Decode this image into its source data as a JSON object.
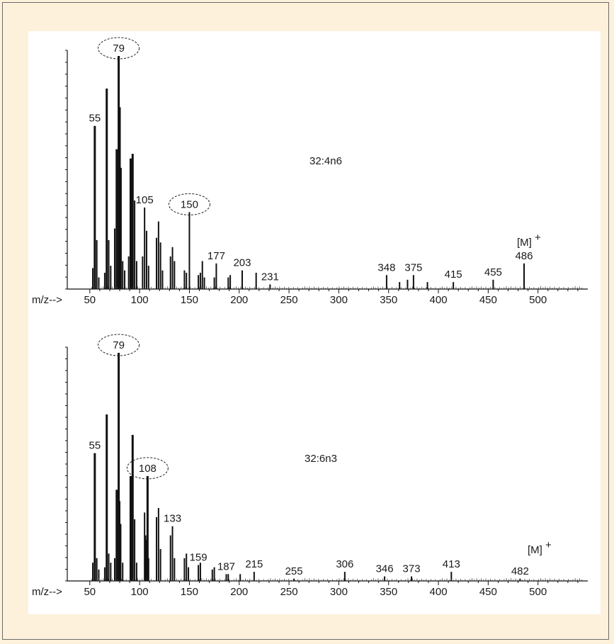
{
  "chart_data": [
    {
      "type": "bar",
      "annotation": "32:4n6",
      "ion_label": "[M]",
      "ion_superscript": "+",
      "axis_prefix": "m/z-->",
      "xlim": [
        48,
        550
      ],
      "ylim": [
        0,
        100
      ],
      "x_ticks": [
        50,
        100,
        150,
        200,
        250,
        300,
        350,
        400,
        450,
        500
      ],
      "circled": [
        79,
        150
      ],
      "peaks": [
        {
          "x": 53,
          "y": 9,
          "label": ""
        },
        {
          "x": 55,
          "y": 70,
          "label": "55"
        },
        {
          "x": 57,
          "y": 21,
          "label": ""
        },
        {
          "x": 59,
          "y": 5,
          "label": ""
        },
        {
          "x": 65,
          "y": 7,
          "label": ""
        },
        {
          "x": 67,
          "y": 86,
          "label": ""
        },
        {
          "x": 69,
          "y": 21,
          "label": ""
        },
        {
          "x": 71,
          "y": 10,
          "label": ""
        },
        {
          "x": 75,
          "y": 26,
          "label": ""
        },
        {
          "x": 77,
          "y": 60,
          "label": ""
        },
        {
          "x": 79,
          "y": 100,
          "label": "79"
        },
        {
          "x": 80,
          "y": 78,
          "label": ""
        },
        {
          "x": 81,
          "y": 52,
          "label": ""
        },
        {
          "x": 83,
          "y": 12,
          "label": ""
        },
        {
          "x": 85,
          "y": 8,
          "label": ""
        },
        {
          "x": 89,
          "y": 14,
          "label": ""
        },
        {
          "x": 91,
          "y": 56,
          "label": ""
        },
        {
          "x": 93,
          "y": 58,
          "label": ""
        },
        {
          "x": 95,
          "y": 38,
          "label": ""
        },
        {
          "x": 97,
          "y": 12,
          "label": ""
        },
        {
          "x": 103,
          "y": 14,
          "label": ""
        },
        {
          "x": 105,
          "y": 35,
          "label": "105"
        },
        {
          "x": 107,
          "y": 25,
          "label": ""
        },
        {
          "x": 109,
          "y": 10,
          "label": ""
        },
        {
          "x": 117,
          "y": 22,
          "label": ""
        },
        {
          "x": 119,
          "y": 29,
          "label": ""
        },
        {
          "x": 121,
          "y": 20,
          "label": ""
        },
        {
          "x": 123,
          "y": 8,
          "label": ""
        },
        {
          "x": 131,
          "y": 14,
          "label": ""
        },
        {
          "x": 133,
          "y": 18,
          "label": ""
        },
        {
          "x": 135,
          "y": 12,
          "label": ""
        },
        {
          "x": 145,
          "y": 8,
          "label": ""
        },
        {
          "x": 147,
          "y": 7,
          "label": ""
        },
        {
          "x": 150,
          "y": 33,
          "label": "150"
        },
        {
          "x": 159,
          "y": 6,
          "label": ""
        },
        {
          "x": 161,
          "y": 7,
          "label": ""
        },
        {
          "x": 163,
          "y": 12,
          "label": ""
        },
        {
          "x": 165,
          "y": 5,
          "label": ""
        },
        {
          "x": 175,
          "y": 5,
          "label": ""
        },
        {
          "x": 177,
          "y": 11,
          "label": "177"
        },
        {
          "x": 189,
          "y": 5,
          "label": ""
        },
        {
          "x": 191,
          "y": 6,
          "label": ""
        },
        {
          "x": 203,
          "y": 8,
          "label": "203"
        },
        {
          "x": 217,
          "y": 7,
          "label": ""
        },
        {
          "x": 231,
          "y": 2,
          "label": "231"
        },
        {
          "x": 348,
          "y": 6,
          "label": "348"
        },
        {
          "x": 361,
          "y": 3,
          "label": ""
        },
        {
          "x": 369,
          "y": 4,
          "label": ""
        },
        {
          "x": 375,
          "y": 6,
          "label": "375"
        },
        {
          "x": 389,
          "y": 3,
          "label": ""
        },
        {
          "x": 415,
          "y": 3,
          "label": "415"
        },
        {
          "x": 455,
          "y": 4,
          "label": "455"
        },
        {
          "x": 486,
          "y": 11,
          "label": "486"
        }
      ]
    },
    {
      "type": "bar",
      "annotation": "32:6n3",
      "ion_label": "[M]",
      "ion_superscript": "+",
      "axis_prefix": "m/z-->",
      "xlim": [
        48,
        550
      ],
      "ylim": [
        0,
        100
      ],
      "x_ticks": [
        50,
        100,
        150,
        200,
        250,
        300,
        350,
        400,
        450,
        500
      ],
      "circled": [
        79,
        108
      ],
      "peaks": [
        {
          "x": 53,
          "y": 8,
          "label": ""
        },
        {
          "x": 55,
          "y": 56,
          "label": "55"
        },
        {
          "x": 57,
          "y": 10,
          "label": ""
        },
        {
          "x": 59,
          "y": 5,
          "label": ""
        },
        {
          "x": 65,
          "y": 6,
          "label": ""
        },
        {
          "x": 67,
          "y": 73,
          "label": ""
        },
        {
          "x": 69,
          "y": 12,
          "label": ""
        },
        {
          "x": 71,
          "y": 8,
          "label": ""
        },
        {
          "x": 75,
          "y": 10,
          "label": ""
        },
        {
          "x": 77,
          "y": 40,
          "label": ""
        },
        {
          "x": 79,
          "y": 100,
          "label": "79"
        },
        {
          "x": 80,
          "y": 35,
          "label": ""
        },
        {
          "x": 81,
          "y": 25,
          "label": ""
        },
        {
          "x": 83,
          "y": 8,
          "label": ""
        },
        {
          "x": 91,
          "y": 46,
          "label": ""
        },
        {
          "x": 93,
          "y": 64,
          "label": ""
        },
        {
          "x": 95,
          "y": 27,
          "label": ""
        },
        {
          "x": 97,
          "y": 8,
          "label": ""
        },
        {
          "x": 105,
          "y": 30,
          "label": ""
        },
        {
          "x": 106,
          "y": 20,
          "label": ""
        },
        {
          "x": 107,
          "y": 18,
          "label": ""
        },
        {
          "x": 108,
          "y": 46,
          "label": "108"
        },
        {
          "x": 109,
          "y": 10,
          "label": ""
        },
        {
          "x": 117,
          "y": 28,
          "label": ""
        },
        {
          "x": 119,
          "y": 32,
          "label": ""
        },
        {
          "x": 121,
          "y": 14,
          "label": ""
        },
        {
          "x": 131,
          "y": 20,
          "label": ""
        },
        {
          "x": 133,
          "y": 24,
          "label": "133"
        },
        {
          "x": 135,
          "y": 10,
          "label": ""
        },
        {
          "x": 145,
          "y": 10,
          "label": ""
        },
        {
          "x": 147,
          "y": 12,
          "label": ""
        },
        {
          "x": 149,
          "y": 6,
          "label": ""
        },
        {
          "x": 159,
          "y": 7,
          "label": "159"
        },
        {
          "x": 161,
          "y": 8,
          "label": ""
        },
        {
          "x": 173,
          "y": 5,
          "label": ""
        },
        {
          "x": 175,
          "y": 6,
          "label": ""
        },
        {
          "x": 187,
          "y": 3,
          "label": "187"
        },
        {
          "x": 189,
          "y": 3,
          "label": ""
        },
        {
          "x": 201,
          "y": 3,
          "label": ""
        },
        {
          "x": 215,
          "y": 4,
          "label": "215"
        },
        {
          "x": 255,
          "y": 1,
          "label": "255"
        },
        {
          "x": 306,
          "y": 4,
          "label": "306"
        },
        {
          "x": 346,
          "y": 2,
          "label": "346"
        },
        {
          "x": 373,
          "y": 2,
          "label": "373"
        },
        {
          "x": 413,
          "y": 4,
          "label": "413"
        },
        {
          "x": 482,
          "y": 1,
          "label": "482"
        }
      ]
    }
  ]
}
